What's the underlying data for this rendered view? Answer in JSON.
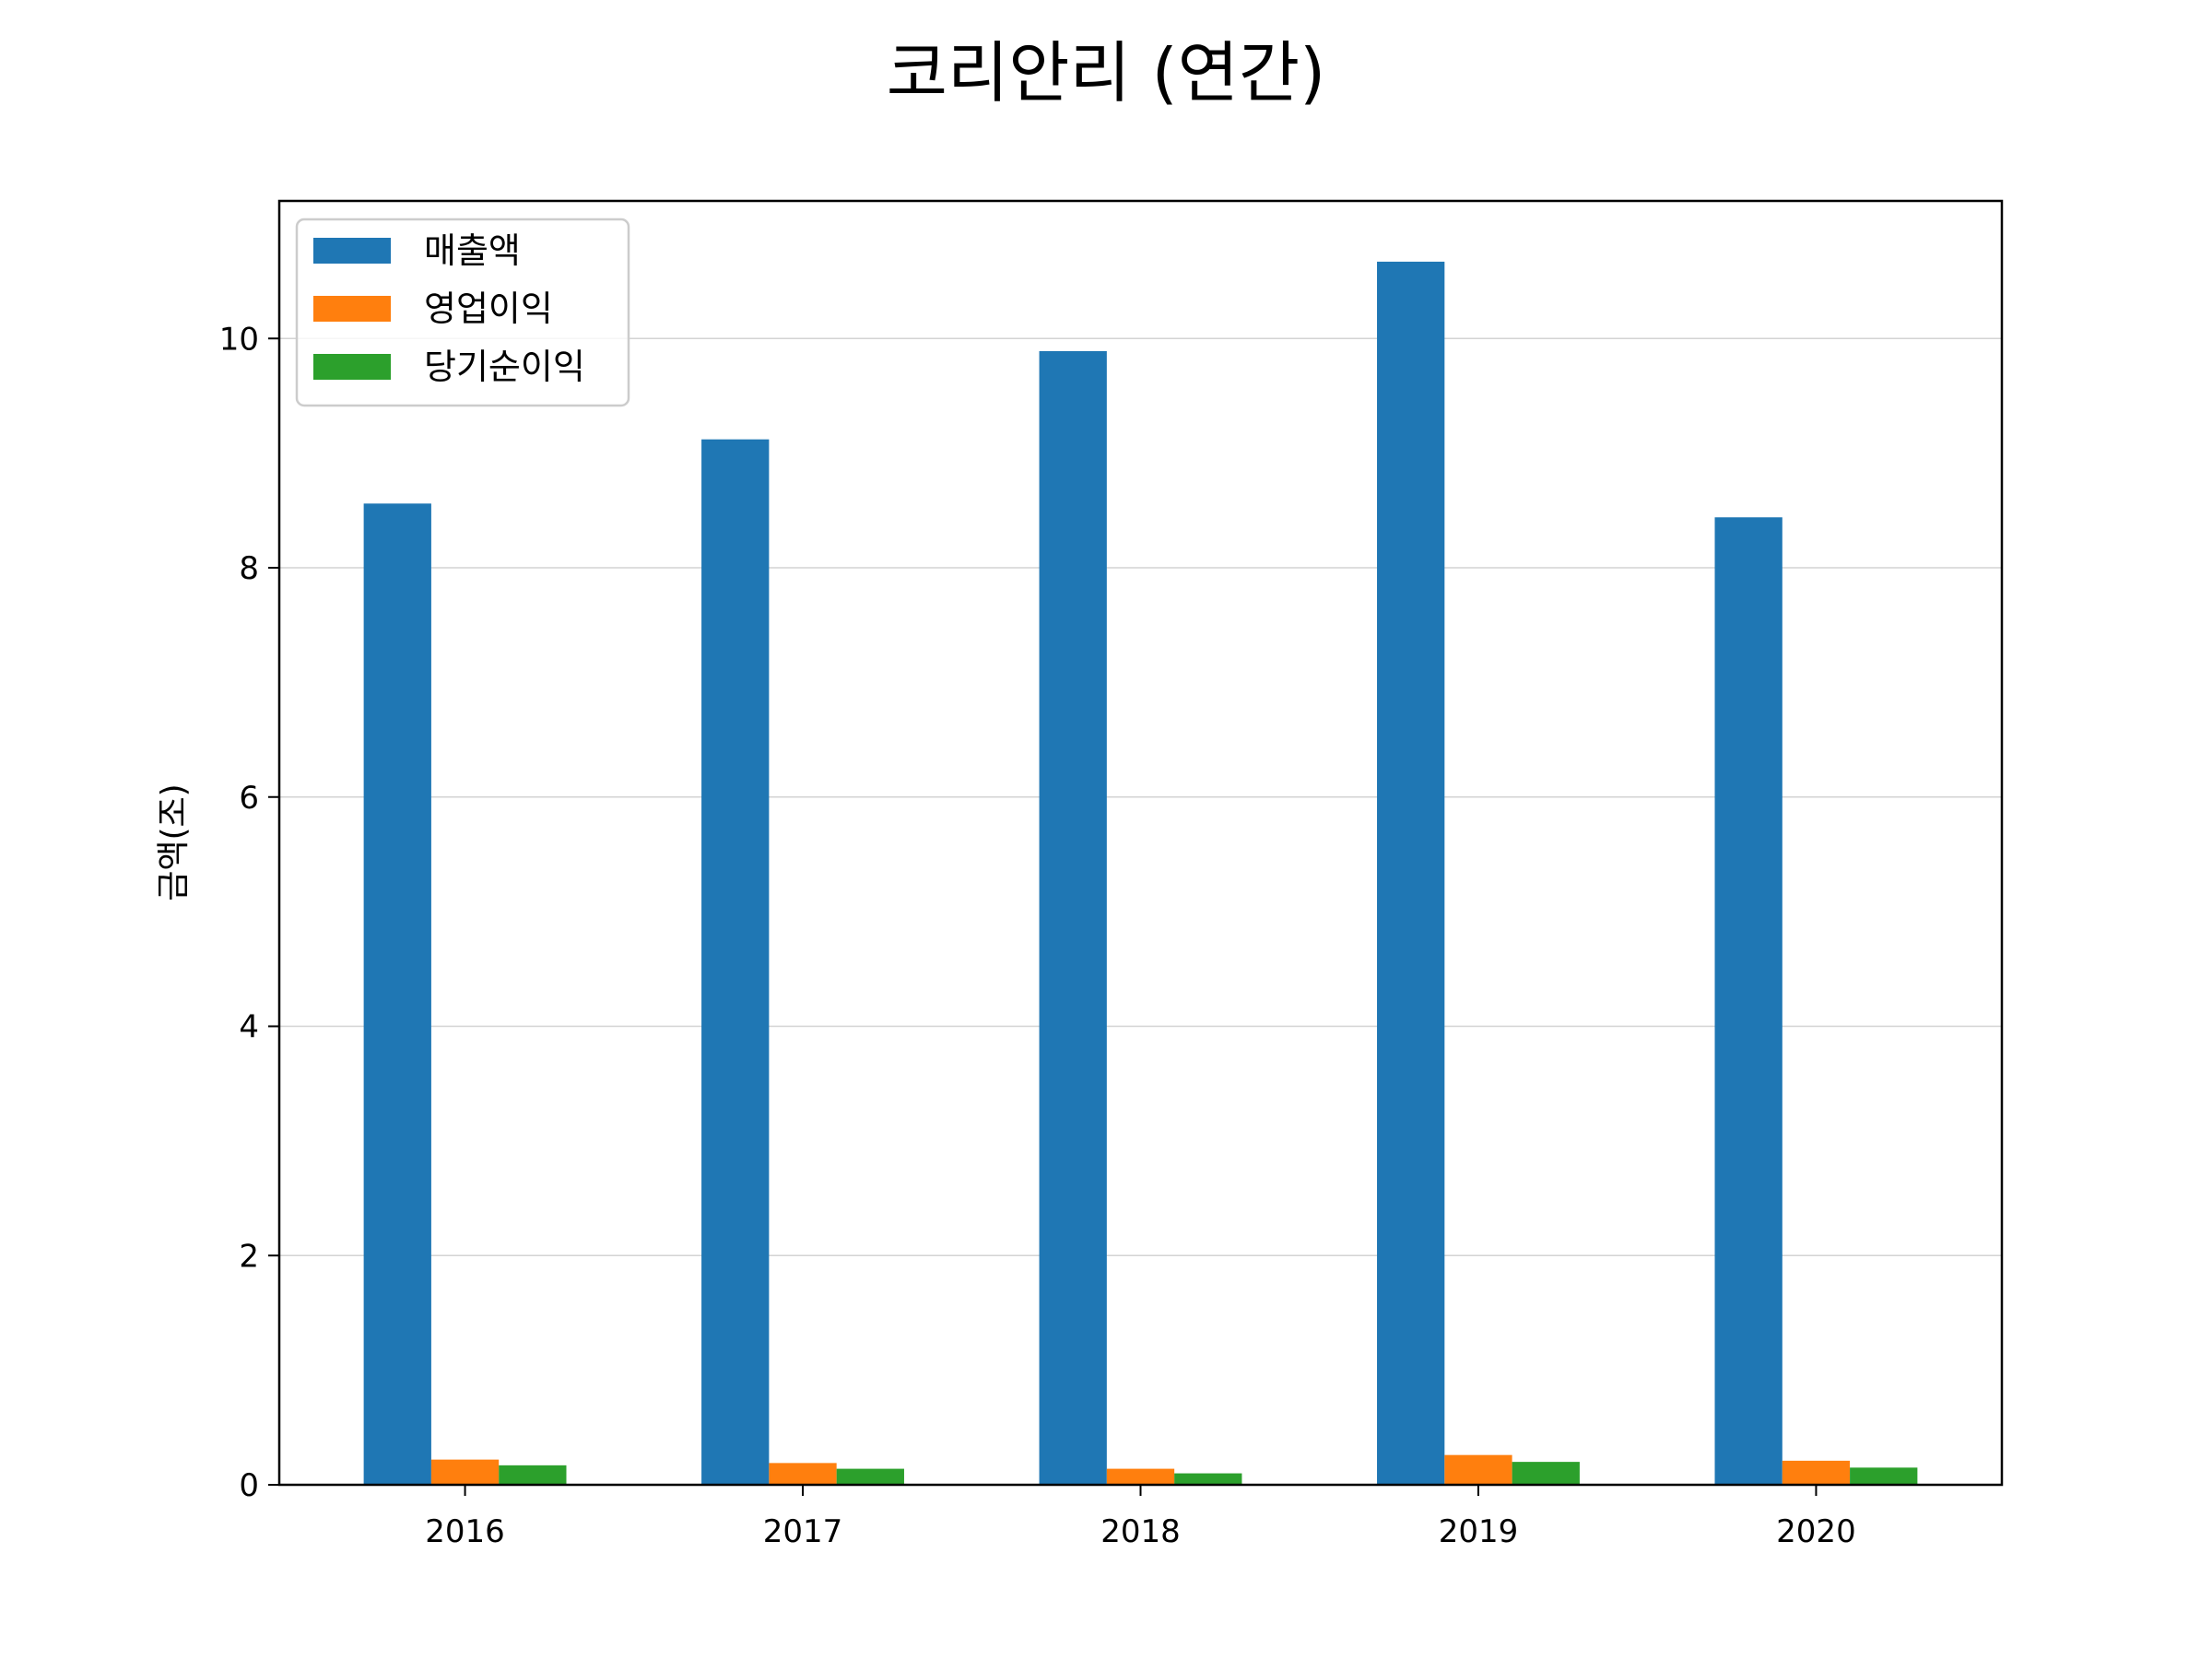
{
  "chart_data": {
    "type": "bar",
    "title": "코리안리 (연간)",
    "xlabel": "",
    "ylabel": "금액(조)",
    "categories": [
      "2016",
      "2017",
      "2018",
      "2019",
      "2020"
    ],
    "series": [
      {
        "name": "매출액",
        "color": "#1f77b4",
        "values": [
          8.56,
          9.12,
          9.89,
          10.67,
          8.44
        ]
      },
      {
        "name": "영업이익",
        "color": "#ff7f0e",
        "values": [
          0.22,
          0.19,
          0.14,
          0.26,
          0.21
        ]
      },
      {
        "name": "당기순이익",
        "color": "#2ca02c",
        "values": [
          0.17,
          0.14,
          0.1,
          0.2,
          0.15
        ]
      }
    ],
    "ylim": [
      0,
      11.2
    ],
    "yticks": [
      0,
      2,
      4,
      6,
      8,
      10
    ],
    "grid": "horizontal",
    "legend_position": "top-left"
  }
}
